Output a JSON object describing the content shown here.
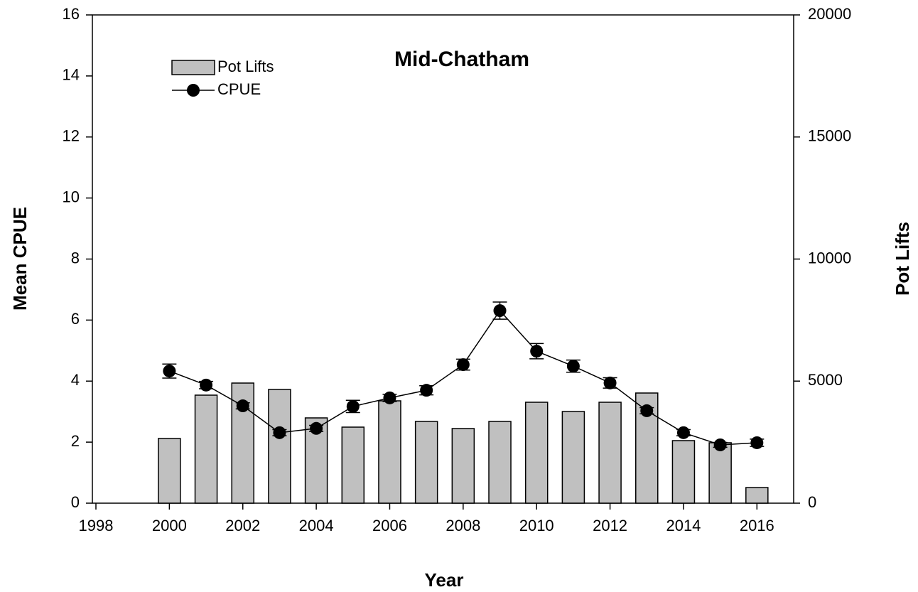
{
  "chart_data": {
    "type": "combo",
    "title": "Mid-Chatham",
    "xlabel": "Year",
    "ylabel": "Mean CPUE",
    "y2label": "Pot Lifts",
    "x": [
      2000,
      2001,
      2002,
      2003,
      2004,
      2005,
      2006,
      2007,
      2008,
      2009,
      2010,
      2011,
      2012,
      2013,
      2014,
      2015,
      2016
    ],
    "series": [
      {
        "name": "Pot Lifts",
        "type": "bar",
        "axis": "y2",
        "color": "#c0c0c0",
        "values": [
          2650,
          4425,
          4920,
          4658,
          3493,
          3115,
          4192,
          3348,
          3057,
          3348,
          4134,
          3755,
          4134,
          4512,
          2562,
          2475,
          640
        ]
      },
      {
        "name": "CPUE",
        "type": "line",
        "color": "#000000",
        "values": [
          4.33,
          3.87,
          3.19,
          2.31,
          2.45,
          3.17,
          3.45,
          3.7,
          4.54,
          6.31,
          4.98,
          4.49,
          3.94,
          3.03,
          2.31,
          1.91,
          1.98
        ],
        "errors": [
          0.23,
          0.12,
          0.1,
          0.1,
          0.1,
          0.2,
          0.12,
          0.15,
          0.18,
          0.28,
          0.25,
          0.2,
          0.17,
          0.1,
          0.1,
          0.08,
          0.12
        ]
      }
    ],
    "xlim": [
      1998,
      2017
    ],
    "xticks": [
      1998,
      2000,
      2002,
      2004,
      2006,
      2008,
      2010,
      2012,
      2014,
      2016
    ],
    "ylim": [
      0,
      16
    ],
    "yticks": [
      0,
      2,
      4,
      6,
      8,
      10,
      12,
      14,
      16
    ],
    "y2lim": [
      0,
      20000
    ],
    "y2ticks": [
      0,
      5000,
      10000,
      15000,
      20000
    ],
    "legend": "upper left"
  }
}
